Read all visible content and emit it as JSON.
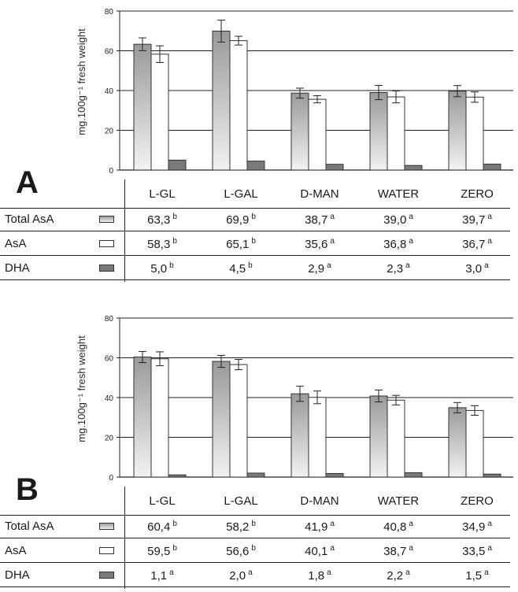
{
  "ylabel": "mg.100g⁻¹ fresh weight",
  "chart_data": [
    {
      "panel_label": "A",
      "type": "bar",
      "categories": [
        "L-GL",
        "L-GAL",
        "D-MAN",
        "WATER",
        "ZERO"
      ],
      "ylim": [
        0,
        80
      ],
      "yticks": [
        0,
        20,
        40,
        60,
        80
      ],
      "grid": true,
      "series": [
        {
          "name": "Total AsA",
          "values": [
            63.3,
            69.9,
            38.7,
            39.0,
            39.7
          ],
          "sig": [
            "b",
            "b",
            "a",
            "a",
            "a"
          ],
          "err": [
            3.2,
            5.5,
            2.5,
            3.6,
            2.8
          ],
          "color": "#bdbdbd"
        },
        {
          "name": "AsA",
          "values": [
            58.3,
            65.1,
            35.6,
            36.8,
            36.7
          ],
          "sig": [
            "b",
            "b",
            "a",
            "a",
            "a"
          ],
          "err": [
            4.2,
            2.2,
            1.8,
            3.0,
            2.6
          ],
          "color": "#ffffff"
        },
        {
          "name": "DHA",
          "values": [
            5.0,
            4.5,
            2.9,
            2.3,
            3.0
          ],
          "sig": [
            "b",
            "b",
            "a",
            "a",
            "a"
          ],
          "err": [
            0,
            0,
            0,
            0,
            0
          ],
          "color": "#7a7a7a"
        }
      ]
    },
    {
      "panel_label": "B",
      "type": "bar",
      "categories": [
        "L-GL",
        "L-GAL",
        "D-MAN",
        "WATER",
        "ZERO"
      ],
      "ylim": [
        0,
        80
      ],
      "yticks": [
        0,
        20,
        40,
        60,
        80
      ],
      "grid": true,
      "series": [
        {
          "name": "Total AsA",
          "values": [
            60.4,
            58.2,
            41.9,
            40.8,
            34.9
          ],
          "sig": [
            "b",
            "b",
            "a",
            "a",
            "a"
          ],
          "err": [
            2.8,
            3.0,
            3.8,
            3.0,
            2.6
          ],
          "color": "#bdbdbd"
        },
        {
          "name": "AsA",
          "values": [
            59.5,
            56.6,
            40.1,
            38.7,
            33.5
          ],
          "sig": [
            "b",
            "b",
            "a",
            "a",
            "a"
          ],
          "err": [
            3.5,
            2.6,
            3.2,
            2.4,
            2.4
          ],
          "color": "#ffffff"
        },
        {
          "name": "DHA",
          "values": [
            1.1,
            2.0,
            1.8,
            2.2,
            1.5
          ],
          "sig": [
            "a",
            "a",
            "a",
            "a",
            "a"
          ],
          "err": [
            0,
            0,
            0,
            0,
            0
          ],
          "color": "#7a7a7a"
        }
      ]
    }
  ]
}
